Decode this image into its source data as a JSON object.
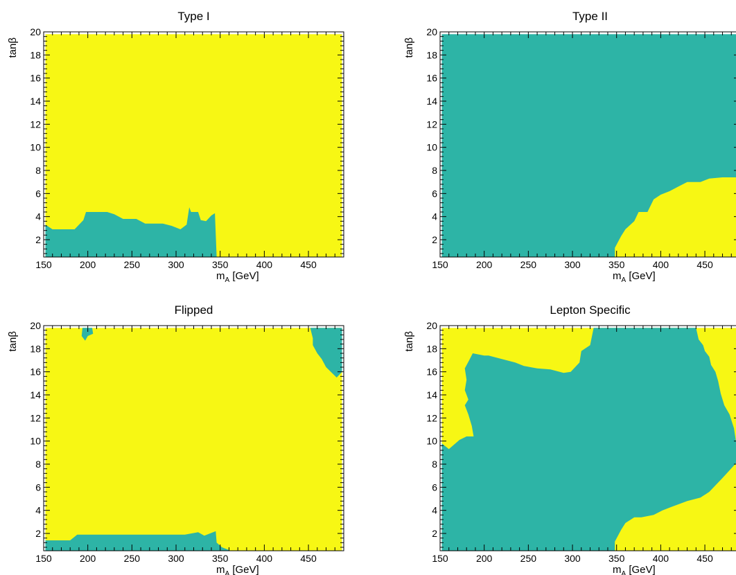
{
  "colors": {
    "allowed": "#F7F714",
    "excluded": "#2DB4A6",
    "axis": "#000000",
    "background": "#FFFFFF"
  },
  "chart_data": [
    {
      "type": "heatmap",
      "title": "Type I",
      "xlabel": "m_A [GeV]",
      "xlabel_main": "m",
      "xlabel_sub": "A",
      "xlabel_unit": " [GeV]",
      "ylabel": "tanβ",
      "xlim": [
        150,
        490
      ],
      "ylim": [
        0.5,
        20
      ],
      "xticks": [
        "150",
        "200",
        "250",
        "300",
        "350",
        "400",
        "450"
      ],
      "yticks": [
        "2",
        "4",
        "6",
        "8",
        "10",
        "12",
        "14",
        "16",
        "18",
        "20"
      ],
      "fill_region": {
        "x": [
          152,
          488
        ],
        "y": [
          0.5,
          19.8
        ]
      },
      "regions": [
        {
          "name": "excluded",
          "boundary": [
            [
              152,
              0.5
            ],
            [
              152,
              3.3
            ],
            [
              160,
              2.9
            ],
            [
              185,
              2.9
            ],
            [
              195,
              3.7
            ],
            [
              198,
              4.4
            ],
            [
              222,
              4.4
            ],
            [
              230,
              4.2
            ],
            [
              240,
              3.8
            ],
            [
              255,
              3.8
            ],
            [
              265,
              3.4
            ],
            [
              285,
              3.4
            ],
            [
              295,
              3.2
            ],
            [
              305,
              2.9
            ],
            [
              312,
              3.3
            ],
            [
              315,
              4.8
            ],
            [
              317,
              4.4
            ],
            [
              325,
              4.4
            ],
            [
              328,
              3.7
            ],
            [
              334,
              3.6
            ],
            [
              340,
              4.1
            ],
            [
              344,
              4.3
            ],
            [
              346,
              0.5
            ]
          ]
        }
      ]
    },
    {
      "type": "heatmap",
      "title": "Type II",
      "xlabel": "m_A [GeV]",
      "xlabel_main": "m",
      "xlabel_sub": "A",
      "xlabel_unit": " [GeV]",
      "ylabel": "tanβ",
      "xlim": [
        150,
        490
      ],
      "ylim": [
        0.5,
        20
      ],
      "xticks": [
        "150",
        "200",
        "250",
        "300",
        "350",
        "400",
        "450"
      ],
      "yticks": [
        "2",
        "4",
        "6",
        "8",
        "10",
        "12",
        "14",
        "16",
        "18",
        "20"
      ],
      "fill_region": {
        "x": [
          152,
          488
        ],
        "y": [
          0.5,
          19.8
        ]
      },
      "regions": [
        {
          "name": "allowed",
          "boundary": [
            [
              348,
              0.5
            ],
            [
              348,
              1.3
            ],
            [
              355,
              2.3
            ],
            [
              360,
              2.9
            ],
            [
              370,
              3.6
            ],
            [
              375,
              4.4
            ],
            [
              385,
              4.4
            ],
            [
              392,
              5.5
            ],
            [
              400,
              5.9
            ],
            [
              410,
              6.2
            ],
            [
              420,
              6.6
            ],
            [
              430,
              7.0
            ],
            [
              445,
              7.0
            ],
            [
              455,
              7.3
            ],
            [
              470,
              7.4
            ],
            [
              488,
              7.4
            ],
            [
              488,
              0.5
            ]
          ]
        }
      ]
    },
    {
      "type": "heatmap",
      "title": "Flipped",
      "xlabel": "m_A [GeV]",
      "xlabel_main": "m",
      "xlabel_sub": "A",
      "xlabel_unit": " [GeV]",
      "ylabel": "tanβ",
      "xlim": [
        150,
        490
      ],
      "ylim": [
        0.5,
        20
      ],
      "xticks": [
        "150",
        "200",
        "250",
        "300",
        "350",
        "400",
        "450"
      ],
      "yticks": [
        "2",
        "4",
        "6",
        "8",
        "10",
        "12",
        "14",
        "16",
        "18",
        "20"
      ],
      "fill_region": {
        "x": [
          152,
          488
        ],
        "y": [
          0.5,
          19.8
        ]
      },
      "regions": [
        {
          "name": "excluded",
          "boundary": [
            [
              152,
              0.5
            ],
            [
              152,
              1.4
            ],
            [
              180,
              1.4
            ],
            [
              188,
              1.9
            ],
            [
              310,
              1.9
            ],
            [
              325,
              2.1
            ],
            [
              332,
              1.8
            ],
            [
              345,
              2.2
            ],
            [
              346,
              1.2
            ],
            [
              352,
              0.8
            ],
            [
              362,
              0.5
            ]
          ]
        },
        {
          "name": "excluded",
          "boundary": [
            [
              194,
              19.8
            ],
            [
              193,
              19.1
            ],
            [
              197,
              18.7
            ],
            [
              200,
              19.1
            ],
            [
              206,
              19.3
            ],
            [
              205,
              19.8
            ]
          ]
        },
        {
          "name": "excluded",
          "boundary": [
            [
              452,
              19.8
            ],
            [
              455,
              18.9
            ],
            [
              455,
              18.3
            ],
            [
              460,
              17.6
            ],
            [
              465,
              17.1
            ],
            [
              470,
              16.4
            ],
            [
              478,
              15.8
            ],
            [
              482,
              15.5
            ],
            [
              488,
              16.0
            ],
            [
              488,
              19.8
            ]
          ]
        }
      ]
    },
    {
      "type": "heatmap",
      "title": "Lepton Specific",
      "xlabel": "m_A [GeV]",
      "xlabel_main": "m",
      "xlabel_sub": "A",
      "xlabel_unit": " [GeV]",
      "ylabel": "tanβ",
      "xlim": [
        150,
        490
      ],
      "ylim": [
        0.5,
        20
      ],
      "xticks": [
        "150",
        "200",
        "250",
        "300",
        "350",
        "400",
        "450"
      ],
      "yticks": [
        "2",
        "4",
        "6",
        "8",
        "10",
        "12",
        "14",
        "16",
        "18",
        "20"
      ],
      "fill_region": {
        "x": [
          152,
          488
        ],
        "y": [
          0.5,
          19.8
        ]
      },
      "regions": [
        {
          "name": "excluded",
          "boundary": [
            [
              152,
              0.5
            ],
            [
              152,
              9.8
            ],
            [
              160,
              9.3
            ],
            [
              172,
              10.1
            ],
            [
              180,
              10.4
            ],
            [
              188,
              10.4
            ],
            [
              186,
              11.3
            ],
            [
              182,
              12.3
            ],
            [
              178,
              13.1
            ],
            [
              182,
              13.6
            ],
            [
              178,
              14.4
            ],
            [
              180,
              15.3
            ],
            [
              178,
              16.3
            ],
            [
              183,
              17.0
            ],
            [
              187,
              17.6
            ],
            [
              200,
              17.4
            ],
            [
              205,
              17.4
            ],
            [
              220,
              17.1
            ],
            [
              235,
              16.8
            ],
            [
              245,
              16.5
            ],
            [
              260,
              16.3
            ],
            [
              275,
              16.2
            ],
            [
              290,
              15.9
            ],
            [
              298,
              16.0
            ],
            [
              308,
              16.8
            ],
            [
              310,
              17.8
            ],
            [
              320,
              18.3
            ],
            [
              324,
              19.8
            ],
            [
              440,
              19.8
            ],
            [
              443,
              18.8
            ],
            [
              448,
              18.3
            ],
            [
              450,
              17.8
            ],
            [
              455,
              17.3
            ],
            [
              457,
              16.6
            ],
            [
              462,
              16.0
            ],
            [
              465,
              15.2
            ],
            [
              468,
              14.1
            ],
            [
              472,
              13.1
            ],
            [
              478,
              12.3
            ],
            [
              483,
              11.1
            ],
            [
              485,
              10.1
            ],
            [
              488,
              8.9
            ],
            [
              488,
              8.3
            ],
            [
              470,
              6.8
            ],
            [
              455,
              5.6
            ],
            [
              445,
              5.1
            ],
            [
              430,
              4.8
            ],
            [
              412,
              4.3
            ],
            [
              402,
              4.0
            ],
            [
              392,
              3.6
            ],
            [
              378,
              3.4
            ],
            [
              370,
              3.4
            ],
            [
              360,
              2.9
            ],
            [
              355,
              2.3
            ],
            [
              348,
              1.3
            ],
            [
              348,
              0.5
            ]
          ]
        }
      ]
    }
  ]
}
